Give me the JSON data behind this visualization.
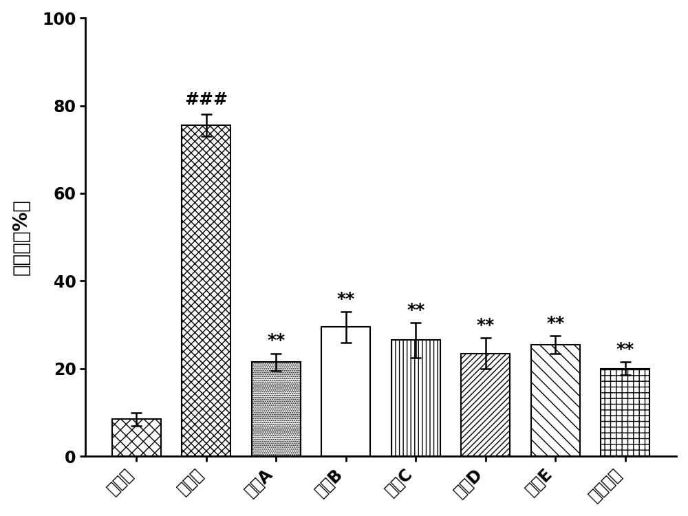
{
  "categories": [
    "对照组",
    "缺氧组",
    "多肽A",
    "多肽B",
    "多肽C",
    "多肽D",
    "多肽E",
    "曲美他嚃"
  ],
  "values": [
    8.5,
    75.5,
    21.5,
    29.5,
    26.5,
    23.5,
    25.5,
    20.0
  ],
  "errors": [
    1.5,
    2.5,
    2.0,
    3.5,
    4.0,
    3.5,
    2.0,
    1.5
  ],
  "ylabel": "死亡率（%）",
  "ylim": [
    0,
    100
  ],
  "yticks": [
    0,
    20,
    40,
    60,
    80,
    100
  ],
  "bar_edgecolor": "black",
  "error_color": "black",
  "annotation_hash": "###",
  "annotation_hash_idx": 1,
  "annotation_star": "**",
  "annotation_star_indices": [
    2,
    3,
    4,
    5,
    6,
    7
  ],
  "label_fontsize": 20,
  "tick_fontsize": 17,
  "annot_fontsize": 18,
  "bar_width": 0.7
}
